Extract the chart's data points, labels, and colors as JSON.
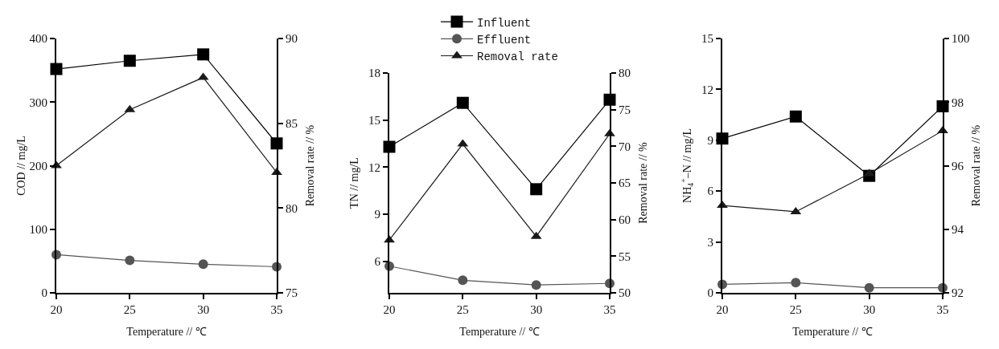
{
  "chart_data": [
    {
      "type": "line",
      "x": [
        20,
        25,
        30,
        35
      ],
      "xlabel": "Temperature // ℃",
      "ylabel": "COD // mg/L",
      "y2label": "Removal rate // %",
      "xlim": [
        20,
        35
      ],
      "xticks": [
        20,
        25,
        30,
        35
      ],
      "ylim": [
        0,
        400
      ],
      "yticks": [
        0,
        100,
        200,
        300,
        400
      ],
      "y2lim": [
        75,
        90
      ],
      "y2ticks": [
        75,
        80,
        85,
        90
      ],
      "grid": false,
      "legend": false,
      "series": [
        {
          "color": "#000000",
          "marker": "square",
          "values": [
            352,
            365,
            375,
            235
          ]
        },
        {
          "color": "#555555",
          "marker": "circle",
          "values": [
            60,
            51,
            45,
            41
          ]
        },
        {
          "color": "#1a1a1a",
          "marker": "triangle",
          "axis": "y2",
          "values": [
            82.5,
            85.8,
            87.7,
            82.1
          ]
        }
      ]
    },
    {
      "type": "line",
      "x": [
        20,
        25,
        30,
        35
      ],
      "xlabel": "Temperature // ℃",
      "ylabel": "TN // mg/L",
      "y2label": "Removal rate // %",
      "xlim": [
        20,
        35
      ],
      "xticks": [
        20,
        25,
        30,
        35
      ],
      "ylim": [
        4,
        18
      ],
      "yticks": [
        6,
        9,
        12,
        15,
        18
      ],
      "y2lim": [
        50,
        80
      ],
      "y2ticks": [
        50,
        55,
        60,
        65,
        70,
        75,
        80
      ],
      "grid": false,
      "legend": "top",
      "series": [
        {
          "name": "Influent",
          "color": "#000000",
          "marker": "square",
          "values": [
            13.3,
            16.1,
            10.6,
            16.3
          ]
        },
        {
          "name": "Effluent",
          "color": "#555555",
          "marker": "circle",
          "values": [
            5.7,
            4.8,
            4.5,
            4.6
          ]
        },
        {
          "name": "Removal rate",
          "color": "#1a1a1a",
          "marker": "triangle",
          "axis": "y2",
          "values": [
            57.2,
            70.3,
            57.7,
            71.7
          ]
        }
      ]
    },
    {
      "type": "line",
      "x": [
        20,
        25,
        30,
        35
      ],
      "xlabel": "Temperature // ℃",
      "ylabel": "NH$_{4}$$^{+}$–N // mg/L",
      "y2label": "Removal rate // %",
      "xlim": [
        20,
        35
      ],
      "xticks": [
        20,
        25,
        30,
        35
      ],
      "ylim": [
        0,
        15
      ],
      "yticks": [
        0,
        3,
        6,
        9,
        12,
        15
      ],
      "y2lim": [
        92,
        100
      ],
      "y2ticks": [
        92,
        94,
        96,
        98,
        100
      ],
      "grid": false,
      "legend": false,
      "series": [
        {
          "color": "#000000",
          "marker": "square",
          "values": [
            9.1,
            10.4,
            6.9,
            11.0
          ]
        },
        {
          "color": "#555555",
          "marker": "circle",
          "values": [
            0.5,
            0.6,
            0.3,
            0.3
          ]
        },
        {
          "color": "#1a1a1a",
          "marker": "triangle",
          "axis": "y2",
          "values": [
            94.75,
            94.55,
            95.75,
            97.1
          ]
        }
      ]
    }
  ]
}
